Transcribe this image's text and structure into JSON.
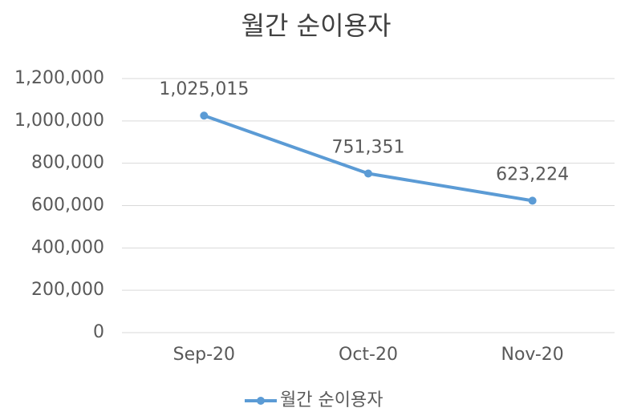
{
  "chart_data": {
    "type": "line",
    "title": "월간 순이용자",
    "categories": [
      "Sep-20",
      "Oct-20",
      "Nov-20"
    ],
    "series": [
      {
        "name": "월간 순이용자",
        "color": "#5b9bd5",
        "values": [
          1025015,
          751351,
          623224
        ],
        "value_labels": [
          "1,025,015",
          "751,351",
          "623,224"
        ]
      }
    ],
    "ylim": [
      0,
      1200000
    ],
    "yticks": [
      0,
      {
        "value": 200000,
        "label": "200,000"
      },
      {
        "value": 400000,
        "label": "400,000"
      },
      {
        "value": 600000,
        "label": "600,000"
      },
      {
        "value": 800000,
        "label": "800,000"
      },
      {
        "value": 1000000,
        "label": "1,000,000"
      },
      {
        "value": 1200000,
        "label": "1,200,000"
      }
    ],
    "grid": true,
    "legend": "bottom"
  }
}
